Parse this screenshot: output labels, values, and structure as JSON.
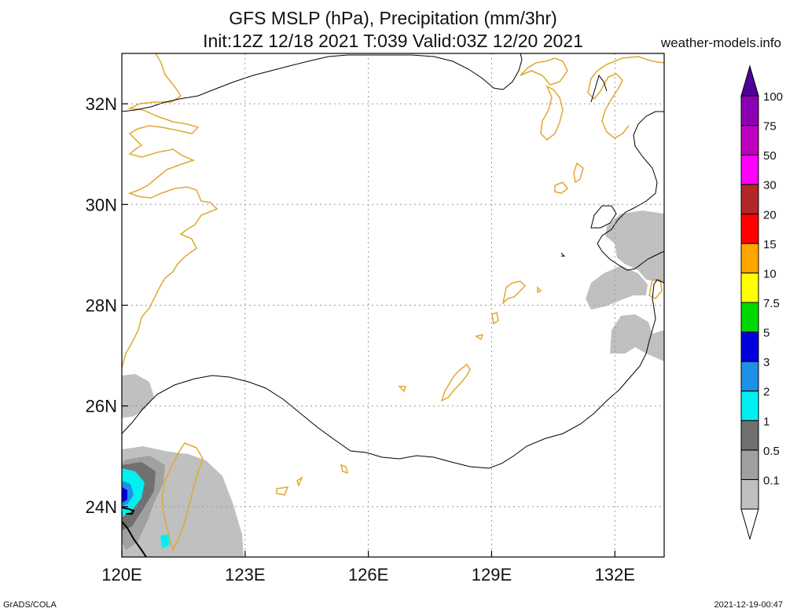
{
  "title": {
    "line1": "GFS MSLP (hPa), Precipitation (mm/3hr)",
    "line2": "Init:12Z 12/18 2021 T:039 Valid:03Z 12/20 2021"
  },
  "site": "weather-models.info",
  "footer": {
    "left": "GrADS/COLA",
    "right": "2021-12-19-00:47"
  },
  "map": {
    "lon_range": [
      120,
      133.2
    ],
    "lat_range": [
      23,
      33
    ],
    "x_ticks": [
      {
        "value": 120,
        "label": "120E"
      },
      {
        "value": 123,
        "label": "123E"
      },
      {
        "value": 126,
        "label": "126E"
      },
      {
        "value": 129,
        "label": "129E"
      },
      {
        "value": 132,
        "label": "132E"
      }
    ],
    "y_ticks": [
      {
        "value": 24,
        "label": "24N"
      },
      {
        "value": 26,
        "label": "26N"
      },
      {
        "value": 28,
        "label": "28N"
      },
      {
        "value": 30,
        "label": "30N"
      },
      {
        "value": 32,
        "label": "32N"
      }
    ],
    "gridlines": true,
    "coastline_color": "#e0a832",
    "isobar_color": "#000000"
  },
  "colorbar": {
    "levels": [
      {
        "label": "0.1",
        "color": "#c0c0c0"
      },
      {
        "label": "0.5",
        "color": "#a0a0a0"
      },
      {
        "label": "1",
        "color": "#707070"
      },
      {
        "label": "2",
        "color": "#00f0f0"
      },
      {
        "label": "3",
        "color": "#1e90e6"
      },
      {
        "label": "5",
        "color": "#0000dc"
      },
      {
        "label": "7.5",
        "color": "#00d800"
      },
      {
        "label": "10",
        "color": "#ffff00"
      },
      {
        "label": "15",
        "color": "#ffa500"
      },
      {
        "label": "20",
        "color": "#ff0000"
      },
      {
        "label": "30",
        "color": "#b22828"
      },
      {
        "label": "50",
        "color": "#ff00ff"
      },
      {
        "label": "75",
        "color": "#c000c0"
      },
      {
        "label": "100",
        "color": "#8c00b4"
      }
    ],
    "top_color": "#500096"
  }
}
